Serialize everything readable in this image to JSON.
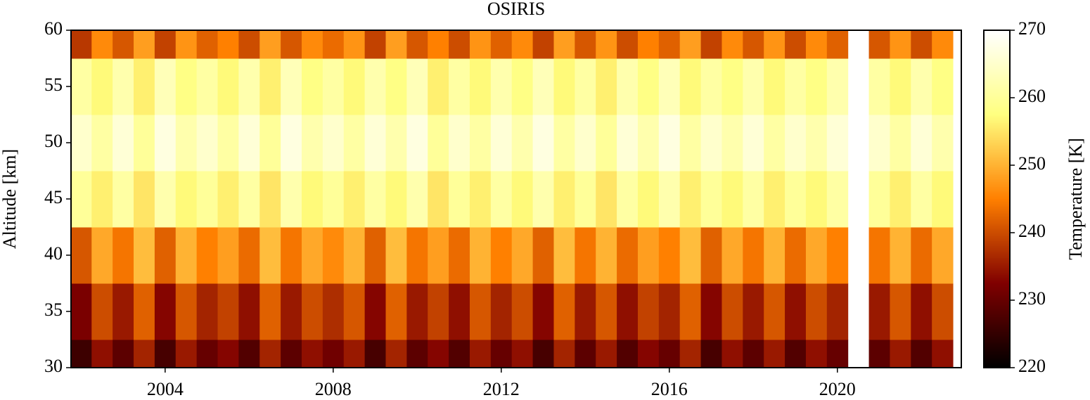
{
  "chart_data": {
    "type": "heatmap",
    "title": "OSIRIS",
    "ylabel": "Altitude [km]",
    "colorbar_label": "Temperature [K]",
    "colormap": "afmhot",
    "x": [
      2002,
      2002.5,
      2003,
      2003.5,
      2004,
      2004.5,
      2005,
      2005.5,
      2006,
      2006.5,
      2007,
      2007.5,
      2008,
      2008.5,
      2009,
      2009.5,
      2010,
      2010.5,
      2011,
      2011.5,
      2012,
      2012.5,
      2013,
      2013.5,
      2014,
      2014.5,
      2015,
      2015.5,
      2016,
      2016.5,
      2017,
      2017.5,
      2018,
      2018.5,
      2019,
      2019.5,
      2020,
      2020.5,
      2021,
      2021.5,
      2022,
      2022.5
    ],
    "y": [
      30,
      35,
      40,
      45,
      50,
      55,
      60
    ],
    "z": [
      [
        226,
        234,
        229,
        236,
        227,
        235,
        230,
        233,
        228,
        236,
        229,
        234,
        231,
        235,
        227,
        236,
        229,
        233,
        228,
        235,
        230,
        234,
        227,
        236,
        229,
        235,
        228,
        233,
        230,
        236,
        227,
        234,
        229,
        235,
        228,
        234,
        230,
        null,
        229,
        235,
        228,
        234
      ],
      [
        232,
        240,
        235,
        242,
        233,
        241,
        236,
        239,
        234,
        242,
        235,
        240,
        237,
        241,
        233,
        242,
        235,
        239,
        234,
        241,
        236,
        240,
        233,
        242,
        235,
        241,
        234,
        239,
        236,
        242,
        233,
        240,
        235,
        241,
        234,
        240,
        236,
        null,
        235,
        241,
        234,
        240
      ],
      [
        241,
        249,
        244,
        251,
        242,
        250,
        245,
        248,
        243,
        251,
        244,
        249,
        246,
        250,
        242,
        251,
        244,
        248,
        243,
        250,
        245,
        249,
        242,
        251,
        244,
        250,
        243,
        248,
        245,
        251,
        242,
        249,
        244,
        250,
        243,
        249,
        245,
        null,
        244,
        250,
        243,
        249
      ],
      [
        260,
        256,
        261,
        255,
        262,
        257,
        260,
        256,
        261,
        255,
        262,
        257,
        260,
        256,
        261,
        257,
        262,
        255,
        260,
        256,
        261,
        257,
        262,
        256,
        260,
        255,
        261,
        257,
        262,
        256,
        260,
        257,
        261,
        256,
        260,
        257,
        261,
        null,
        260,
        256,
        261,
        257
      ],
      [
        265,
        261,
        266,
        260,
        267,
        262,
        265,
        261,
        266,
        260,
        267,
        262,
        265,
        261,
        266,
        262,
        267,
        260,
        265,
        261,
        266,
        262,
        267,
        261,
        265,
        260,
        266,
        262,
        267,
        261,
        265,
        262,
        266,
        261,
        265,
        262,
        266,
        null,
        265,
        261,
        266,
        262
      ],
      [
        261,
        257,
        262,
        256,
        263,
        258,
        261,
        257,
        262,
        256,
        263,
        258,
        261,
        257,
        262,
        258,
        263,
        256,
        261,
        257,
        262,
        258,
        263,
        257,
        261,
        256,
        262,
        258,
        263,
        257,
        261,
        258,
        262,
        257,
        261,
        258,
        262,
        null,
        261,
        257,
        262,
        258
      ],
      [
        238,
        246,
        241,
        248,
        239,
        247,
        242,
        245,
        240,
        248,
        241,
        246,
        243,
        247,
        239,
        248,
        241,
        245,
        240,
        247,
        242,
        246,
        239,
        248,
        241,
        247,
        240,
        245,
        242,
        248,
        239,
        246,
        241,
        247,
        240,
        246,
        242,
        null,
        241,
        247,
        240,
        246
      ]
    ],
    "xlim": [
      2001.76,
      2022.95
    ],
    "ylim": [
      30,
      60
    ],
    "zlim": [
      220,
      270
    ],
    "xticks": [
      2004,
      2008,
      2012,
      2016,
      2020
    ],
    "yticks": [
      30,
      35,
      40,
      45,
      50,
      55,
      60
    ],
    "zticks": [
      220,
      230,
      240,
      250,
      260,
      270
    ]
  }
}
